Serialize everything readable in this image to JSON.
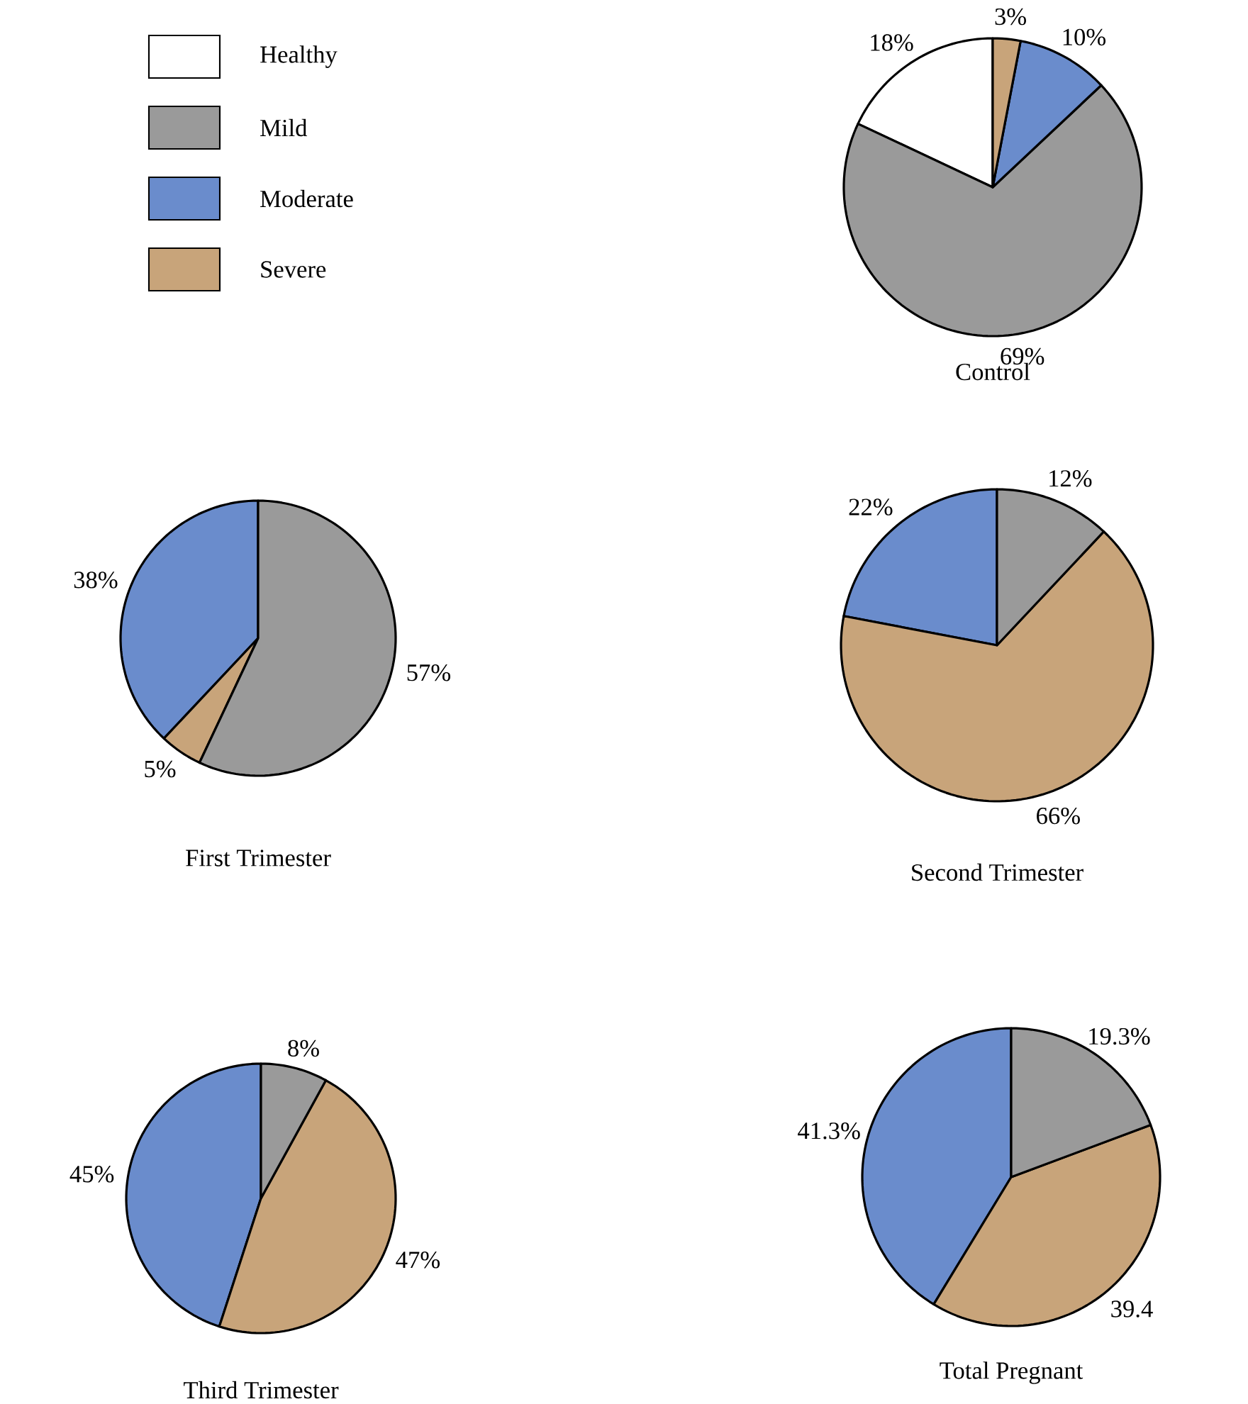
{
  "chart_data": [
    {
      "type": "pie",
      "title": "Control",
      "categories": [
        "Healthy",
        "Mild",
        "Moderate",
        "Severe"
      ],
      "values": [
        18,
        69,
        10,
        3
      ],
      "colors": [
        "#ffffff",
        "#9a9a9a",
        "#6a8ccc",
        "#c8a47a"
      ],
      "value_labels": [
        "18%",
        "69%",
        "10%",
        "3%"
      ],
      "legend": "left"
    },
    {
      "type": "pie",
      "title": "First Trimester",
      "categories": [
        null,
        null,
        null
      ],
      "values": [
        38,
        5,
        57
      ],
      "colors": [
        "#6a8ccc",
        "#c8a47a",
        "#9a9a9a"
      ],
      "value_labels": [
        "38%",
        "5%",
        "57%"
      ]
    },
    {
      "type": "pie",
      "title": "Second Trimester",
      "categories": [
        null,
        null,
        null
      ],
      "values": [
        22,
        66,
        12
      ],
      "colors": [
        "#6a8ccc",
        "#c8a47a",
        "#9a9a9a"
      ],
      "value_labels": [
        "22%",
        "66%",
        "12%"
      ]
    },
    {
      "type": "pie",
      "title": "Third Trimester",
      "categories": [
        null,
        null,
        null
      ],
      "values": [
        45,
        47,
        8
      ],
      "colors": [
        "#6a8ccc",
        "#c8a47a",
        "#9a9a9a"
      ],
      "value_labels": [
        "45%",
        "47%",
        "8%"
      ]
    },
    {
      "type": "pie",
      "title": "Total Pregnant",
      "categories": [
        null,
        null,
        null
      ],
      "values": [
        41.3,
        39.4,
        19.3
      ],
      "colors": [
        "#6a8ccc",
        "#c8a47a",
        "#9a9a9a"
      ],
      "value_labels": [
        "41.3%",
        "39.4",
        "19.3%"
      ]
    }
  ]
}
